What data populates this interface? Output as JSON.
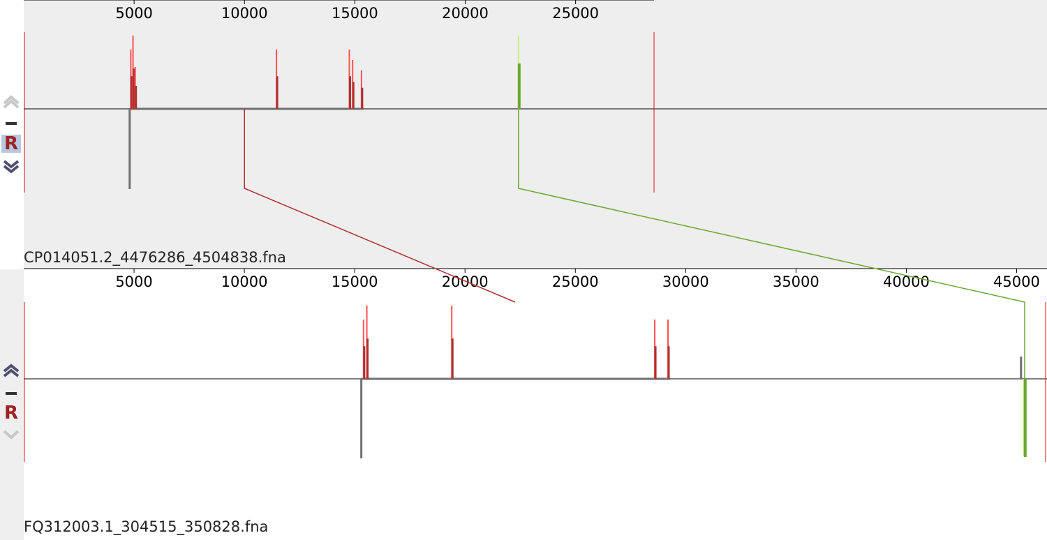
{
  "colors": {
    "forward_block": "#b03030",
    "forward_light": "#ff5050",
    "reverse_block": "#6aa830",
    "reverse_light": "#c8f08a",
    "coverage": "#707070",
    "boundary": "#e01010",
    "top_panel_bg": "#eeeeee",
    "bottom_panel_bg": "#ffffff"
  },
  "icons": {
    "move_up": "chevron-up-icon",
    "collapse": "minus-icon",
    "reverse": "reverse-complement-icon",
    "move_down": "chevron-down-icon"
  },
  "sequences": [
    {
      "id": "seq-top",
      "label": "CP014051.2_4476286_4504838.fna",
      "length": 28553,
      "ticks": [
        "5000",
        "10000",
        "15000",
        "20000",
        "25000"
      ],
      "tick_values": [
        5000,
        10000,
        15000,
        20000,
        25000
      ],
      "reverse_label": "R",
      "reverse_active": true,
      "collapse_label": "—"
    },
    {
      "id": "seq-bottom",
      "label": "FQ312003.1_304515_350828.fna",
      "length": 46314,
      "ticks": [
        "5000",
        "10000",
        "15000",
        "20000",
        "25000",
        "30000",
        "35000",
        "40000",
        "45000"
      ],
      "tick_values": [
        5000,
        10000,
        15000,
        20000,
        25000,
        30000,
        35000,
        40000,
        45000
      ],
      "reverse_label": "R",
      "reverse_active": false,
      "collapse_label": "—"
    }
  ],
  "blocks": [
    {
      "name": "block-1",
      "orientation": "forward",
      "top_start": 4800,
      "top_end": 15400,
      "bottom_start": 15300,
      "bottom_end": 29300
    },
    {
      "name": "block-2",
      "orientation": "reverse",
      "top_start": 22350,
      "top_end": 22600,
      "bottom_start": 45200,
      "bottom_end": 45600
    }
  ]
}
